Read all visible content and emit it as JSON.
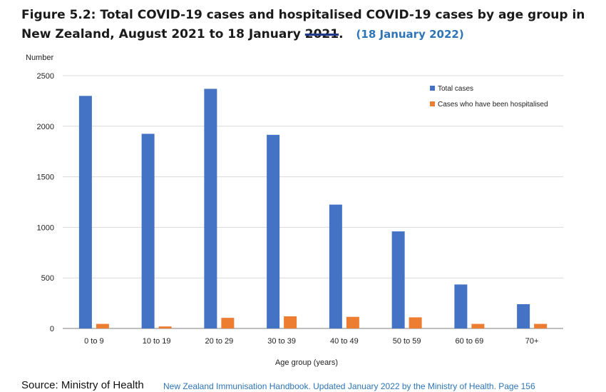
{
  "title": {
    "main": "Figure 5.2: Total COVID-19 cases and hospitalised COVID-19 cases by age group in New Zealand, August 2021 to 18 January ",
    "struck": "2021",
    "end": ".",
    "correction": "(18 January 2022)"
  },
  "chart_data": {
    "type": "bar",
    "ylabel": "Number",
    "xlabel": "Age group (years)",
    "ylim": [
      0,
      2500
    ],
    "yticks": [
      0,
      500,
      1000,
      1500,
      2000,
      2500
    ],
    "grid": true,
    "legend_position": "top-right",
    "categories": [
      "0 to 9",
      "10 to 19",
      "20 to 29",
      "30 to 39",
      "40 to 49",
      "50 to 59",
      "60 to 69",
      "70+"
    ],
    "series": [
      {
        "name": "Total cases",
        "color": "#4472c4",
        "values": [
          2300,
          1925,
          2370,
          1915,
          1225,
          960,
          435,
          240
        ]
      },
      {
        "name": "Cases who have been hospitalised",
        "color": "#ed7d31",
        "values": [
          45,
          20,
          105,
          120,
          115,
          110,
          45,
          45
        ]
      }
    ]
  },
  "footer": {
    "source": "Source: Ministry of Health",
    "reference": "New Zealand Immunisation Handbook. Updated January 2022 by the Ministry of Health. Page 156"
  }
}
